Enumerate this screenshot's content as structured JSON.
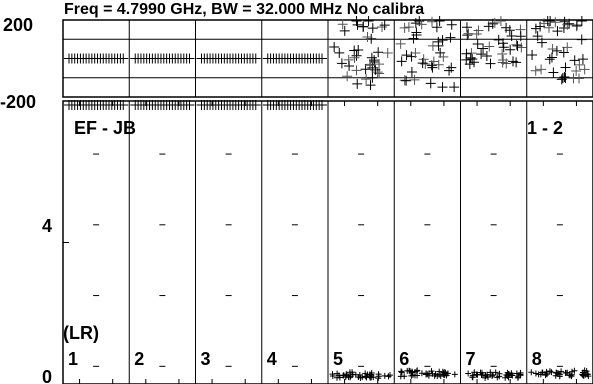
{
  "chart_data": {
    "type": "scatter",
    "title": "Freq = 4.7990 GHz, BW = 32.000 MHz  No calibra",
    "baseline_label": "EF - JB",
    "pol_label": "(LR)",
    "sideband_label": "1 - 2",
    "phase_panel": {
      "ylabel": "",
      "ylim": [
        -200,
        200
      ],
      "yticks": [
        "200",
        "-200"
      ]
    },
    "amp_panel": {
      "ylabel": "",
      "ylim": [
        0,
        8
      ],
      "yticks": [
        "4",
        "0"
      ]
    },
    "channels": [
      {
        "label": "1",
        "phase_mean": 0,
        "phase_spread": 0,
        "amp": 0
      },
      {
        "label": "2",
        "phase_mean": 0,
        "phase_spread": 0,
        "amp": 0
      },
      {
        "label": "3",
        "phase_mean": 0,
        "phase_spread": 0,
        "amp": 0
      },
      {
        "label": "4",
        "phase_mean": 0,
        "phase_spread": 0,
        "amp": 0
      },
      {
        "label": "5",
        "phase_mean": 40,
        "phase_spread": 180,
        "amp": 0.25
      },
      {
        "label": "6",
        "phase_mean": 20,
        "phase_spread": 180,
        "amp": 0.3
      },
      {
        "label": "7",
        "phase_mean": 80,
        "phase_spread": 120,
        "amp": 0.25
      },
      {
        "label": "8",
        "phase_mean": 60,
        "phase_spread": 170,
        "amp": 0.3
      }
    ]
  }
}
